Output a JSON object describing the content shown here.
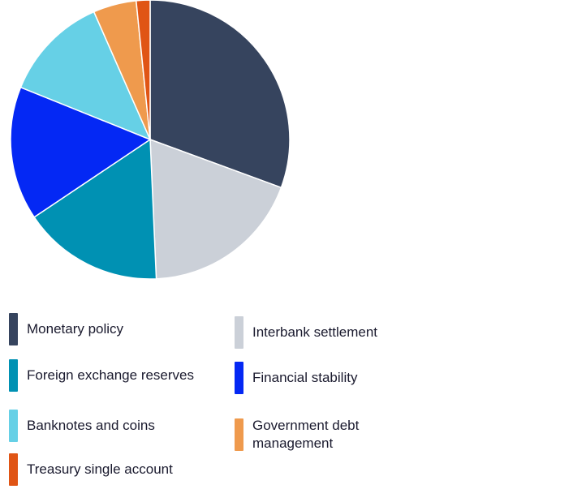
{
  "chart_data": {
    "type": "pie",
    "title": "",
    "categories": [
      "Monetary policy",
      "Interbank settlement",
      "Foreign exchange reserves",
      "Financial stability",
      "Banknotes and coins",
      "Government debt management",
      "Treasury single account"
    ],
    "slice_order_clockwise_from_top": [
      "Monetary policy",
      "Interbank settlement",
      "Foreign exchange reserves",
      "Financial stability",
      "Banknotes and coins",
      "Government debt management",
      "Treasury single account"
    ],
    "values": [
      30.6,
      18.7,
      16.3,
      15.5,
      12.3,
      5.0,
      1.6
    ],
    "unit": "%",
    "colors": [
      "#36445e",
      "#cbd0d8",
      "#0091b3",
      "#0428f4",
      "#66d0e6",
      "#ef9a4d",
      "#e05515"
    ],
    "legend_position": "bottom"
  },
  "legend": {
    "items": [
      {
        "label": "Monetary policy",
        "color": "#36445e"
      },
      {
        "label": "Interbank settlement",
        "color": "#cbd0d8"
      },
      {
        "label": "Foreign exchange reserves",
        "color": "#0091b3"
      },
      {
        "label": "Financial stability",
        "color": "#0428f4"
      },
      {
        "label": "Banknotes and coins",
        "color": "#66d0e6"
      },
      {
        "label": "Government debt management",
        "color": "#ef9a4d"
      },
      {
        "label": "Treasury single account",
        "color": "#e05515"
      }
    ]
  }
}
